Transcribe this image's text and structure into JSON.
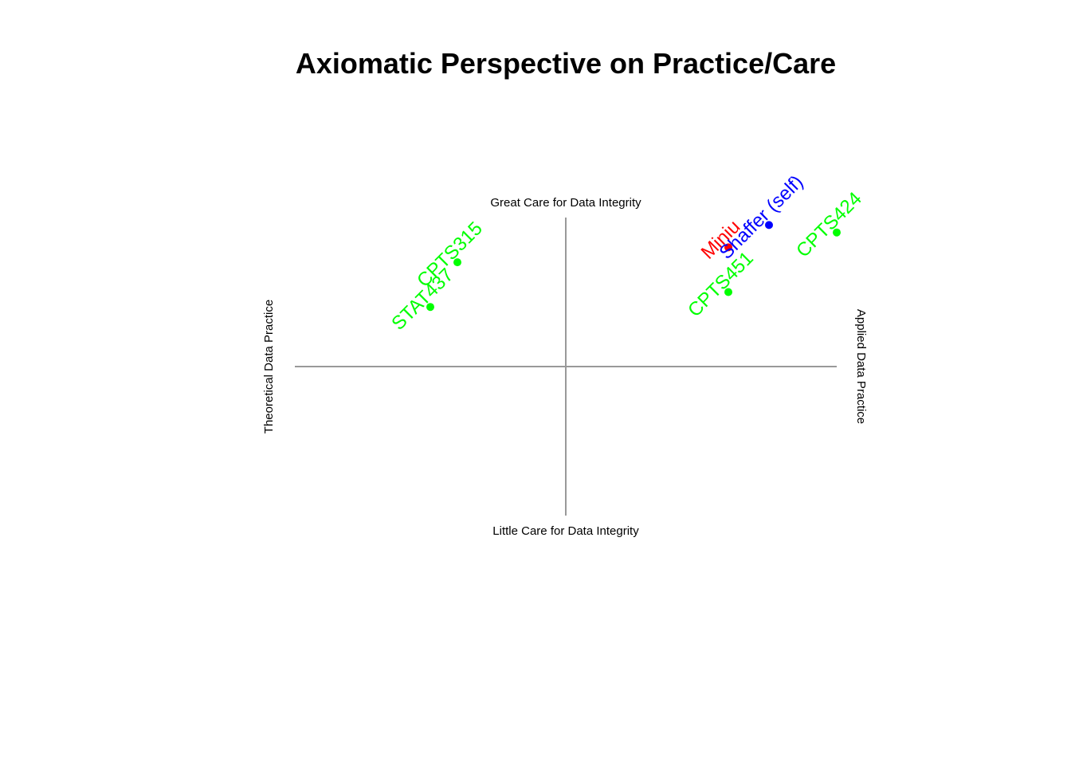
{
  "chart_data": {
    "type": "scatter",
    "title": "Axiomatic Perspective on Practice/Care",
    "axes": {
      "top_label": "Great Care for Data Integrity",
      "bottom_label": "Little Care for Data Integrity",
      "left_label": "Theoretical Data Practice",
      "right_label": "Applied Data Practice",
      "xlim": [
        -10,
        10
      ],
      "ylim": [
        -10,
        10
      ],
      "axis_color": "#999999"
    },
    "grid": false,
    "legend": "none",
    "points": [
      {
        "label": "CPTS315",
        "x": -4.0,
        "y": 7.0,
        "color": "#00ff00"
      },
      {
        "label": "STAT437",
        "x": -5.0,
        "y": 4.0,
        "color": "#00ff00"
      },
      {
        "label": "CPTS451",
        "x": 6.0,
        "y": 5.0,
        "color": "#00ff00"
      },
      {
        "label": "CPTS424",
        "x": 10.0,
        "y": 9.0,
        "color": "#00ff00"
      },
      {
        "label": "Miniu",
        "x": 6.0,
        "y": 8.0,
        "color": "#ff0000"
      },
      {
        "label": "Shaffer (self)",
        "x": 7.5,
        "y": 9.5,
        "color": "#0000ff"
      }
    ]
  }
}
